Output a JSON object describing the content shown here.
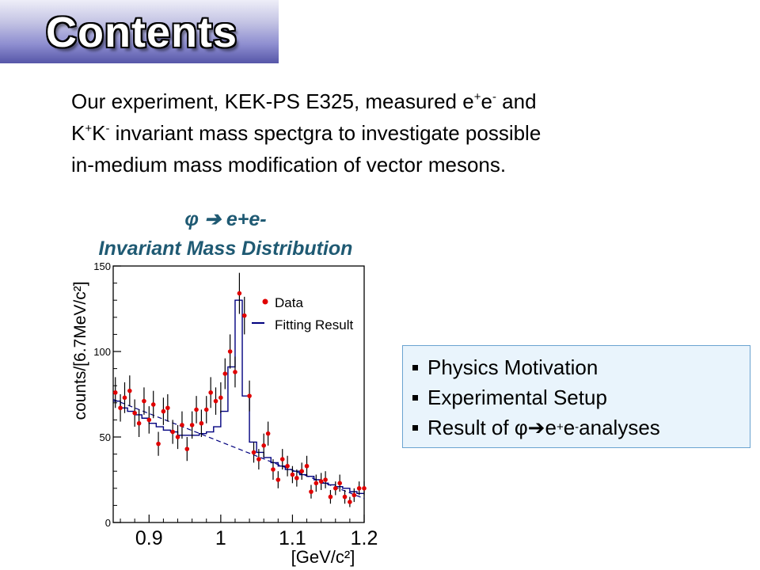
{
  "slide": {
    "title": "Contents",
    "intro": {
      "l1_a": "Our experiment, KEK-PS E325, measured e",
      "l1_sup1": "+",
      "l1_b": "e",
      "l1_sup2": "-",
      "l1_c": " and",
      "l2_a": "K",
      "l2_sup1": "+",
      "l2_b": "K",
      "l2_sup2": "-",
      "l2_c": " invariant mass spectgra to investigate possible",
      "l3": "in-medium mass modification of vector mesons."
    },
    "plot_title_line1": "φ  ➔ e+e-",
    "plot_title_line2": "Invariant Mass Distribution",
    "toc": {
      "item1": "Physics Motivation",
      "item2": "Experimental Setup",
      "item3_a": "Result of  φ➔e",
      "item3_sup1": "+",
      "item3_b": "e",
      "item3_sup2": "-",
      "item3_c": " analyses"
    }
  },
  "chart_data": {
    "type": "scatter",
    "xlabel": "[GeV/c²]",
    "ylabel": "counts/[6.7MeV/c²]",
    "xlim": [
      0.85,
      1.2
    ],
    "ylim": [
      0,
      150
    ],
    "x_ticks": [
      0.9,
      1,
      1.1,
      1.2
    ],
    "x_tick_labels": [
      "0.9",
      "1",
      "1.1",
      "1.2"
    ],
    "y_ticks": [
      0,
      50,
      100,
      150
    ],
    "y_tick_labels": [
      "0",
      "50",
      "100",
      "150"
    ],
    "legend": {
      "position": "top-right",
      "entries": [
        "Data",
        "Fitting Result"
      ]
    },
    "colors": {
      "data": "#e00000",
      "fit": "#00007f"
    },
    "series": [
      {
        "name": "Data",
        "x": [
          0.853,
          0.86,
          0.866,
          0.873,
          0.88,
          0.886,
          0.893,
          0.9,
          0.906,
          0.913,
          0.92,
          0.926,
          0.933,
          0.94,
          0.946,
          0.953,
          0.96,
          0.966,
          0.973,
          0.98,
          0.986,
          0.993,
          1.0,
          1.006,
          1.013,
          1.02,
          1.026,
          1.033,
          1.04,
          1.046,
          1.053,
          1.06,
          1.066,
          1.073,
          1.08,
          1.086,
          1.093,
          1.1,
          1.106,
          1.113,
          1.12,
          1.126,
          1.133,
          1.14,
          1.146,
          1.153,
          1.16,
          1.166,
          1.173,
          1.18,
          1.186,
          1.193,
          1.2
        ],
        "y": [
          76,
          67,
          73,
          77,
          64,
          58,
          71,
          60,
          69,
          46,
          65,
          67,
          53,
          50,
          57,
          43,
          57,
          66,
          58,
          66,
          76,
          71,
          73,
          87,
          100,
          88,
          134,
          121,
          74,
          41,
          37,
          45,
          52,
          31,
          25,
          37,
          33,
          28,
          26,
          30,
          33,
          18,
          23,
          24,
          25,
          15,
          20,
          23,
          15,
          12,
          16,
          20,
          20
        ],
        "errors": [
          9,
          8,
          9,
          9,
          8,
          8,
          8,
          8,
          8,
          7,
          8,
          8,
          7,
          7,
          8,
          7,
          8,
          8,
          8,
          8,
          9,
          8,
          9,
          9,
          10,
          9,
          12,
          11,
          9,
          6,
          6,
          7,
          7,
          6,
          5,
          6,
          6,
          5,
          5,
          5,
          6,
          4,
          5,
          5,
          5,
          4,
          4,
          5,
          4,
          3,
          4,
          4,
          4
        ]
      },
      {
        "name": "Fitting Result",
        "step": true,
        "x": [
          0.85,
          0.86,
          0.87,
          0.88,
          0.89,
          0.9,
          0.91,
          0.92,
          0.93,
          0.94,
          0.95,
          0.96,
          0.97,
          0.98,
          0.99,
          1.0,
          1.01,
          1.02,
          1.03,
          1.04,
          1.05,
          1.06,
          1.07,
          1.08,
          1.09,
          1.1,
          1.11,
          1.12,
          1.13,
          1.14,
          1.15,
          1.16,
          1.17,
          1.18,
          1.19,
          1.2
        ],
        "y": [
          71,
          67,
          65,
          63,
          61,
          58,
          56,
          54,
          53,
          51,
          51,
          51,
          52,
          53,
          56,
          65,
          91,
          130,
          74,
          47,
          41,
          38,
          35,
          33,
          31,
          30,
          28,
          27,
          25,
          23,
          22,
          21,
          20,
          18,
          17,
          15
        ]
      },
      {
        "name": "background",
        "dashed": true,
        "x": [
          0.85,
          1.2
        ],
        "y": [
          72,
          14
        ]
      }
    ]
  }
}
